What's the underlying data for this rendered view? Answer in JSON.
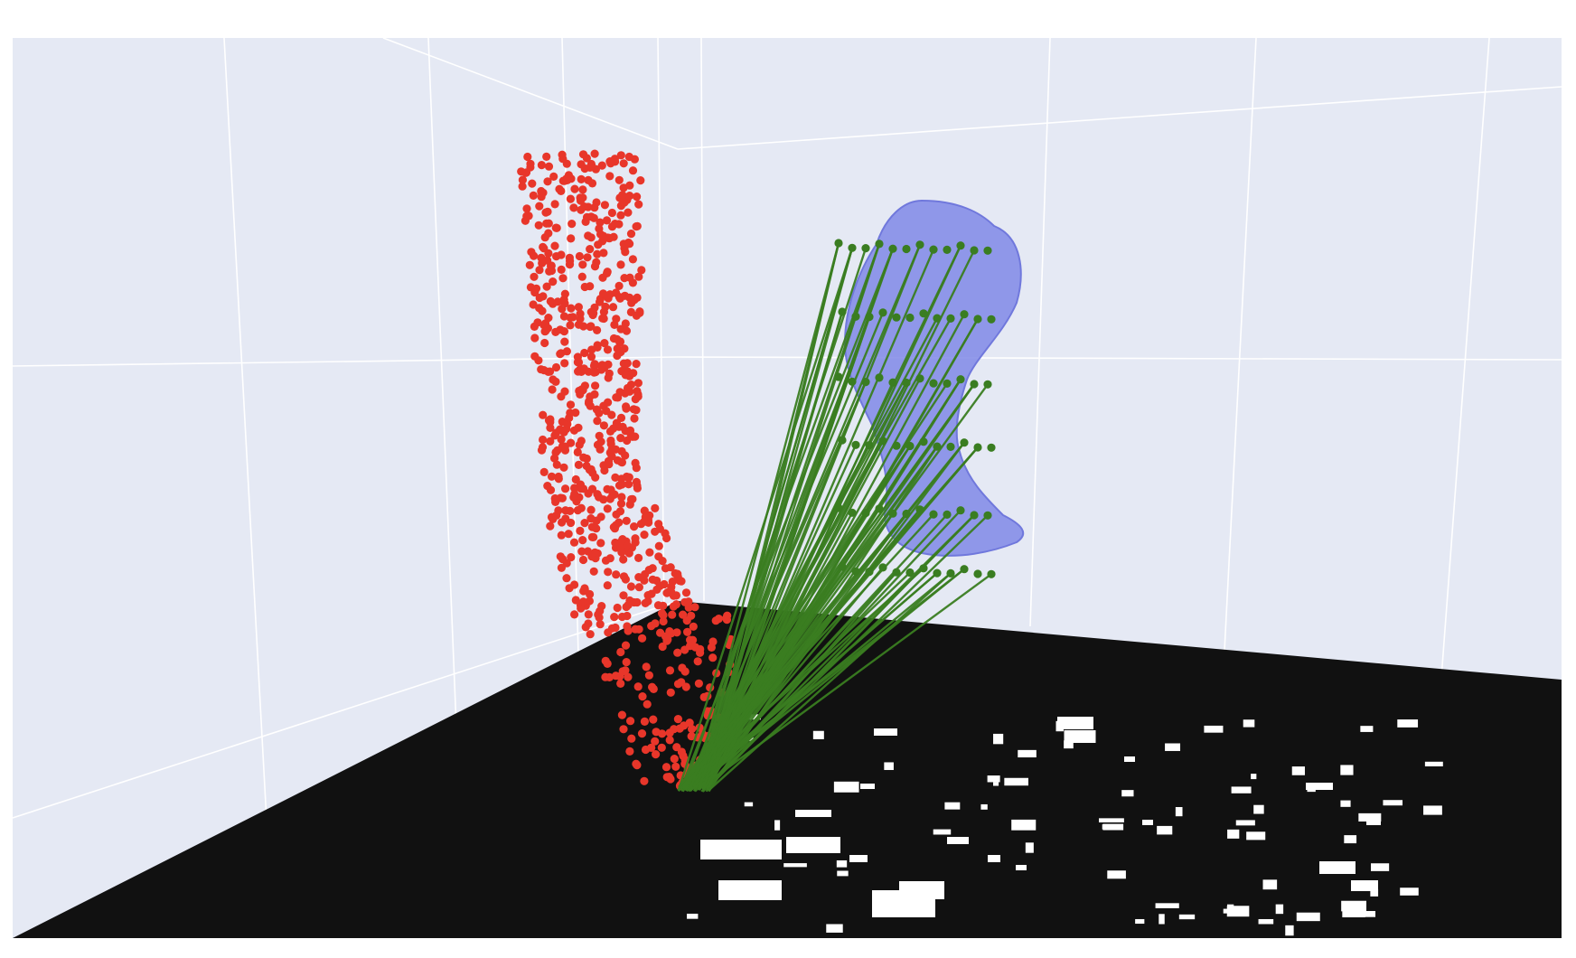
{
  "chart_data": {
    "type": "scatter3d",
    "title": "",
    "show_legend": false,
    "grid": true,
    "colors": {
      "background": "#ffffff",
      "pane": "#e5e9f4",
      "grid": "#ffffff",
      "floor": "#111111",
      "floor_blob": "#ffffff",
      "red_points": "#e8362a",
      "green_points": "#3a7d21",
      "green_lines": "#3a7d21",
      "blue_mesh": "#8088e6"
    },
    "series": [
      {
        "kind": "point-cloud",
        "color": "red_points",
        "count": 780,
        "x_range": [
          0.0,
          0.35
        ],
        "y_range": [
          0.0,
          1.0
        ],
        "z_range": [
          0.0,
          1.0
        ]
      },
      {
        "kind": "grid-points",
        "color": "green_points",
        "rows": 6,
        "columns": 12
      },
      {
        "kind": "correspondence-lines",
        "color": "green_lines",
        "count": 90
      },
      {
        "kind": "mesh",
        "color": "blue_mesh"
      }
    ],
    "floor": {
      "kind": "binary-image",
      "background": "floor",
      "foreground": "floor_blob"
    }
  }
}
